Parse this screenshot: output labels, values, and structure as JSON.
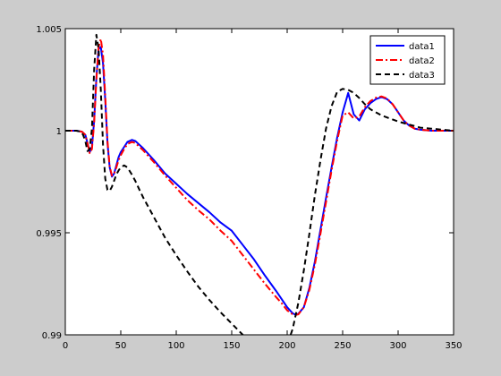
{
  "chart_data": {
    "type": "line",
    "title": "",
    "xlabel": "",
    "ylabel": "",
    "xlim": [
      0,
      350
    ],
    "ylim": [
      0.99,
      1.005
    ],
    "xticks": [
      0,
      50,
      100,
      150,
      200,
      250,
      300,
      350
    ],
    "xtick_labels": [
      "0",
      "50",
      "100",
      "150",
      "200",
      "250",
      "300",
      "350"
    ],
    "yticks": [
      0.99,
      0.995,
      1.0,
      1.005
    ],
    "ytick_labels": [
      "0.99",
      "0.995",
      "1",
      "1.005"
    ],
    "grid": false,
    "legend_position": "top-right",
    "series": [
      {
        "name": "data1",
        "color": "#0000ff",
        "style": "solid",
        "x": [
          0,
          10,
          15,
          18,
          20,
          22,
          24,
          26,
          28,
          30,
          32,
          34,
          36,
          38,
          40,
          42,
          44,
          46,
          48,
          50,
          53,
          56,
          60,
          63,
          66,
          70,
          80,
          90,
          100,
          110,
          120,
          130,
          140,
          150,
          160,
          170,
          180,
          190,
          195,
          200,
          205,
          208,
          210,
          215,
          220,
          225,
          230,
          235,
          240,
          245,
          250,
          255,
          260,
          265,
          270,
          275,
          280,
          285,
          290,
          295,
          300,
          305,
          310,
          315,
          320,
          330,
          340,
          350
        ],
        "y": [
          1.0,
          1.0,
          0.99995,
          0.9998,
          0.9994,
          0.99895,
          0.9992,
          1.0005,
          1.0026,
          1.004,
          1.0041,
          1.0033,
          1.0015,
          0.9994,
          0.9982,
          0.99775,
          0.9979,
          0.9983,
          0.9987,
          0.99895,
          0.9992,
          0.99945,
          0.99955,
          0.9995,
          0.99935,
          0.99915,
          0.99855,
          0.9979,
          0.9974,
          0.9969,
          0.99645,
          0.996,
          0.9955,
          0.9951,
          0.9944,
          0.9937,
          0.9929,
          0.99215,
          0.99175,
          0.99135,
          0.99105,
          0.99098,
          0.99103,
          0.99135,
          0.9923,
          0.9936,
          0.99515,
          0.9967,
          0.9982,
          0.99965,
          1.0009,
          1.00185,
          1.0008,
          1.0005,
          1.00105,
          1.00135,
          1.00155,
          1.00165,
          1.00155,
          1.0013,
          1.0009,
          1.0005,
          1.00025,
          1.0001,
          1.00005,
          1.0,
          1.0,
          1.0
        ]
      },
      {
        "name": "data2",
        "color": "#ff0000",
        "style": "dashdot",
        "x": [
          0,
          10,
          15,
          18,
          20,
          22,
          24,
          26,
          28,
          30,
          32,
          34,
          36,
          38,
          40,
          42,
          44,
          46,
          48,
          50,
          53,
          56,
          60,
          63,
          66,
          70,
          80,
          90,
          100,
          110,
          120,
          130,
          140,
          150,
          160,
          170,
          180,
          190,
          195,
          200,
          205,
          208,
          210,
          215,
          220,
          225,
          230,
          235,
          240,
          245,
          250,
          255,
          260,
          265,
          270,
          275,
          280,
          285,
          290,
          295,
          300,
          305,
          310,
          315,
          320,
          330,
          340,
          350
        ],
        "y": [
          1.0,
          1.0,
          0.99995,
          0.9998,
          0.9994,
          0.9989,
          0.9991,
          1.0004,
          1.0025,
          1.0041,
          1.0045,
          1.0037,
          1.0017,
          0.9995,
          0.99825,
          0.9978,
          0.9979,
          0.9982,
          0.99855,
          0.9988,
          0.9991,
          0.99935,
          0.99945,
          0.9994,
          0.99925,
          0.99905,
          0.99845,
          0.9978,
          0.9972,
          0.9966,
          0.9961,
          0.99565,
          0.9951,
          0.9946,
          0.9939,
          0.9932,
          0.9925,
          0.99185,
          0.99155,
          0.9912,
          0.991,
          0.99098,
          0.991,
          0.99135,
          0.9922,
          0.99345,
          0.99495,
          0.9965,
          0.99805,
          0.9995,
          1.00075,
          1.0009,
          1.0006,
          1.0007,
          1.00115,
          1.00145,
          1.00162,
          1.00168,
          1.00158,
          1.0013,
          1.0009,
          1.0005,
          1.00025,
          1.0001,
          1.00005,
          1.0,
          1.0,
          1.0
        ]
      },
      {
        "name": "data3",
        "color": "#000000",
        "style": "dashed",
        "x": [
          0,
          10,
          14,
          16,
          18,
          20,
          22,
          24,
          26,
          28,
          30,
          32,
          34,
          36,
          38,
          40,
          42,
          44,
          46,
          48,
          50,
          53,
          56,
          60,
          63,
          66,
          70,
          80,
          90,
          100,
          110,
          120,
          130,
          140,
          150,
          160,
          170,
          180,
          185,
          190,
          195,
          200,
          205,
          210,
          215,
          220,
          225,
          230,
          235,
          240,
          245,
          250,
          255,
          260,
          265,
          270,
          275,
          280,
          285,
          290,
          295,
          300,
          310,
          320,
          330,
          340,
          350
        ],
        "y": [
          1.0,
          1.0,
          0.99995,
          0.9998,
          0.9995,
          0.999,
          0.9991,
          1.0001,
          1.003,
          1.0047,
          1.004,
          1.002,
          0.9993,
          0.99765,
          0.9971,
          0.99705,
          0.99725,
          0.99755,
          0.99785,
          0.99805,
          0.9982,
          0.9983,
          0.9982,
          0.99785,
          0.99755,
          0.9972,
          0.99675,
          0.99575,
          0.99475,
          0.9939,
          0.9931,
          0.99235,
          0.9917,
          0.9911,
          0.99055,
          0.99,
          0.9895,
          0.98905,
          0.98895,
          0.989,
          0.9892,
          0.9895,
          0.9903,
          0.99155,
          0.99315,
          0.99495,
          0.99685,
          0.99855,
          1.0001,
          1.0012,
          1.0019,
          1.00205,
          1.002,
          1.00185,
          1.0016,
          1.0013,
          1.00105,
          1.0009,
          1.00075,
          1.00065,
          1.00055,
          1.00045,
          1.0003,
          1.00015,
          1.0001,
          1.00005,
          1.0
        ]
      }
    ]
  }
}
